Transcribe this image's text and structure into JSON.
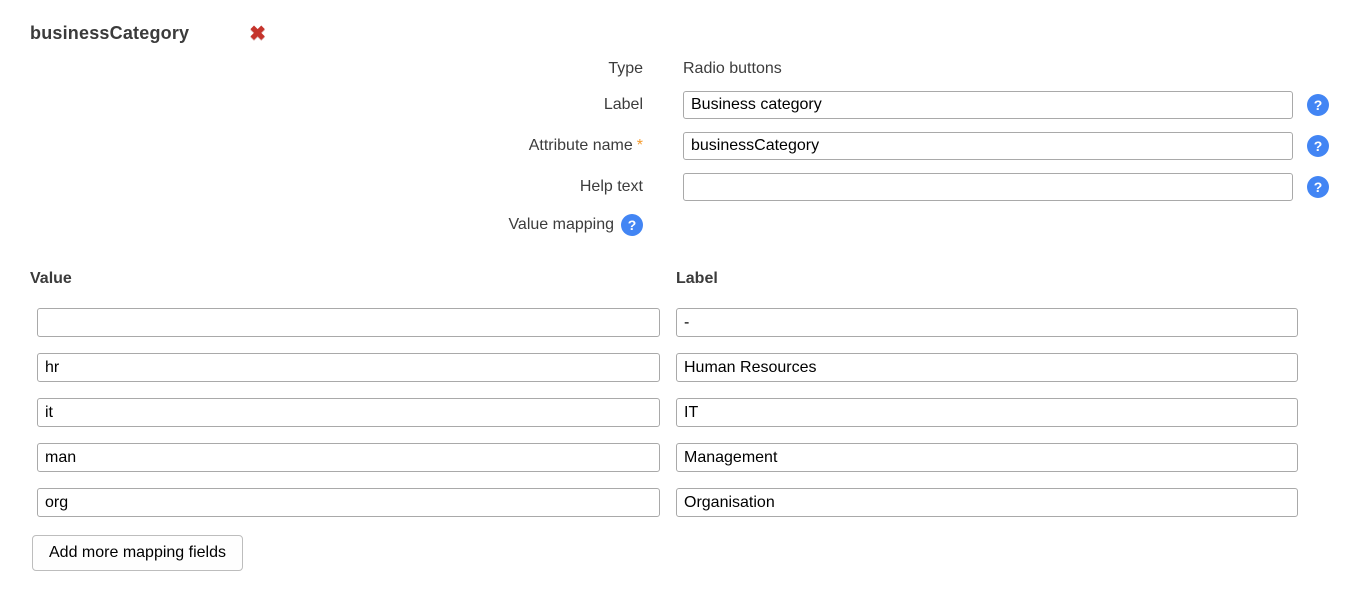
{
  "header": {
    "title": "businessCategory"
  },
  "icons": {
    "delete_glyph": "✖",
    "help_glyph": "?"
  },
  "form": {
    "type_row": {
      "label": "Type",
      "value": "Radio buttons"
    },
    "label_row": {
      "label": "Label",
      "value": "Business category"
    },
    "attribute_row": {
      "label": "Attribute name",
      "required_marker": "*",
      "value": "businessCategory"
    },
    "help_text_row": {
      "label": "Help text",
      "value": ""
    },
    "value_mapping_row": {
      "label": "Value mapping"
    }
  },
  "mapping": {
    "columns": {
      "value": "Value",
      "label": "Label"
    },
    "rows": [
      {
        "value": "",
        "label": "-"
      },
      {
        "value": "hr",
        "label": "Human Resources"
      },
      {
        "value": "it",
        "label": "IT"
      },
      {
        "value": "man",
        "label": "Management"
      },
      {
        "value": "org",
        "label": "Organisation"
      }
    ],
    "add_button_label": "Add more mapping fields"
  },
  "colors": {
    "help_icon_blue": "#4285f4",
    "required_asterisk_orange": "#f59b2d",
    "delete_red": "#c5342c",
    "title_gray": "#3b3b3b"
  }
}
